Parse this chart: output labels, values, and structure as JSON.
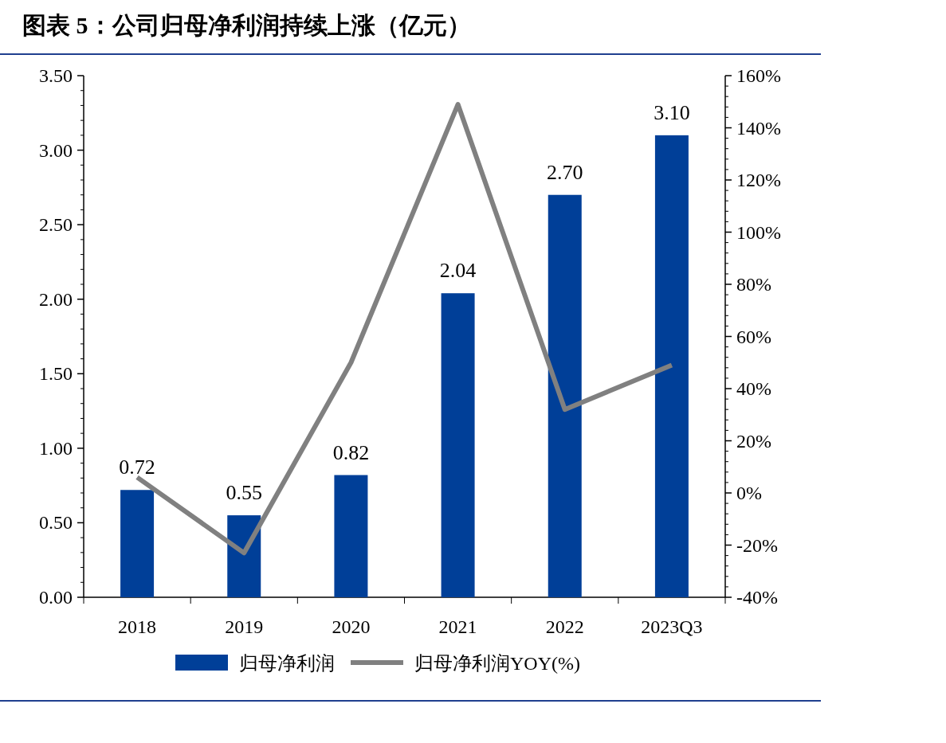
{
  "chart_data": {
    "type": "bar",
    "title": "图表 5：公司归母净利润持续上涨（亿元）",
    "categories": [
      "2018",
      "2019",
      "2020",
      "2021",
      "2022",
      "2023Q3"
    ],
    "series": [
      {
        "name": "归母净利润",
        "color": "#003f98",
        "values": [
          0.72,
          0.55,
          0.82,
          2.04,
          2.7,
          3.1
        ],
        "value_labels": [
          "0.72",
          "0.55",
          "0.82",
          "2.04",
          "2.70",
          "3.10"
        ]
      },
      {
        "name": "归母净利润YOY(%)",
        "type": "line",
        "axis": "y2",
        "color": "#808080",
        "values": [
          6,
          -23,
          50,
          149,
          32,
          49
        ]
      }
    ],
    "ylim": [
      0,
      3.5
    ],
    "yticks": [
      {
        "value": 0,
        "label": "0.00"
      },
      {
        "value": 0.5,
        "label": "0.50"
      },
      {
        "value": 1,
        "label": "1.00"
      },
      {
        "value": 1.5,
        "label": "1.50"
      },
      {
        "value": 2,
        "label": "2.00"
      },
      {
        "value": 2.5,
        "label": "2.50"
      },
      {
        "value": 3,
        "label": "3.00"
      },
      {
        "value": 3.5,
        "label": "3.50"
      }
    ],
    "y2lim": [
      -40,
      160
    ],
    "y2ticks": [
      {
        "value": -40,
        "label": "-40%"
      },
      {
        "value": -20,
        "label": "-20%"
      },
      {
        "value": 0,
        "label": "0%"
      },
      {
        "value": 20,
        "label": "20%"
      },
      {
        "value": 40,
        "label": "40%"
      },
      {
        "value": 60,
        "label": "60%"
      },
      {
        "value": 80,
        "label": "80%"
      },
      {
        "value": 100,
        "label": "100%"
      },
      {
        "value": 120,
        "label": "120%"
      },
      {
        "value": 140,
        "label": "140%"
      },
      {
        "value": 160,
        "label": "160%"
      }
    ],
    "legend": "bottom",
    "grid": false
  }
}
